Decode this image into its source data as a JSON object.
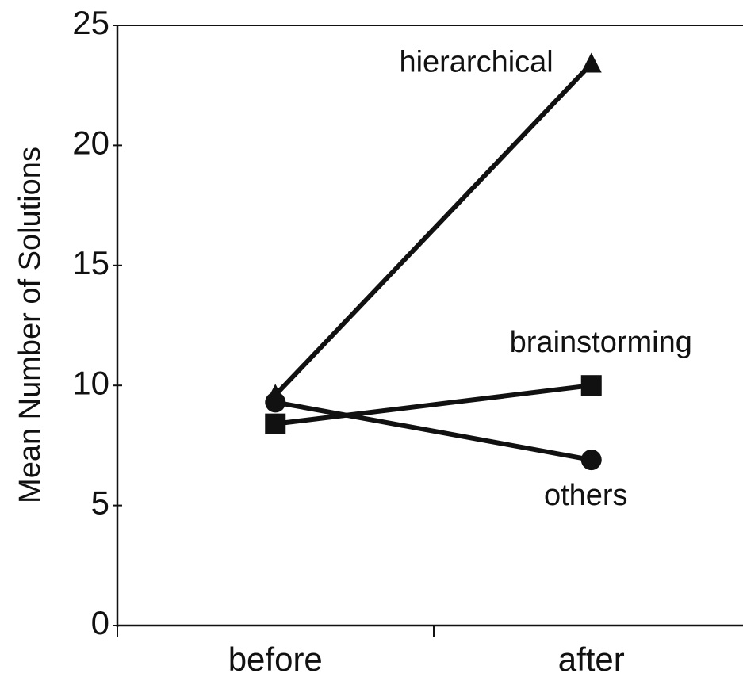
{
  "chart_data": {
    "type": "line",
    "ylabel": "Mean Number of Solutions",
    "categories": [
      "before",
      "after"
    ],
    "series": [
      {
        "name": "hierarchical",
        "color": "#111111",
        "marker": "triangle",
        "values": [
          9.6,
          23.4
        ]
      },
      {
        "name": "brainstorming",
        "color": "#111111",
        "marker": "square",
        "values": [
          8.4,
          10.0
        ]
      },
      {
        "name": "others",
        "color": "#111111",
        "marker": "circle",
        "values": [
          9.3,
          6.9
        ]
      }
    ],
    "ylim": [
      0,
      25
    ],
    "yticks": [
      0,
      5,
      10,
      15,
      20,
      25
    ],
    "grid": false
  }
}
